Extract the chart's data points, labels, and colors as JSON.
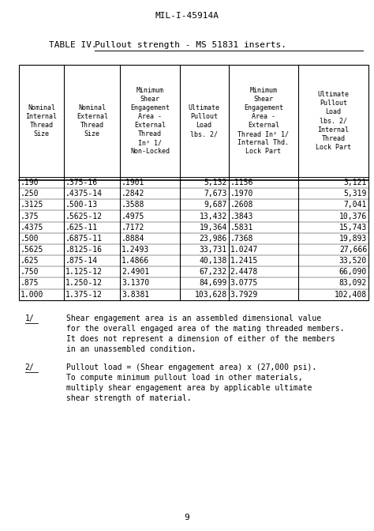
{
  "page_header": "MIL-I-45914A",
  "table_title_prefix": "TABLE IV.",
  "table_title_underlined": "Pullout strength - MS 51831 inserts.",
  "col_headers": [
    "Nominal\nInternal\nThread\nSize",
    "Nominal\nExternal\nThread\nSize",
    "Minimum\nShear\nEngagement\nArea -\nExternal\nThread\nIn² 1/\nNon-Locked",
    "Ultimate\nPullout\nLoad\nlbs. 2/",
    "Minimum\nShear\nEngagement\nArea -\nExternal\nThread In² 1/\nInternal Thd.\nLock Part",
    "Ultimate\nPullout\nLoad\nlbs. 2/\nInternal\nThread\nLock Part"
  ],
  "rows": [
    [
      ".190",
      ".375-16",
      ".1901",
      "5,132",
      ".1156",
      "3,121"
    ],
    [
      ".250",
      ".4375-14",
      ".2842",
      "7,673",
      ".1970",
      "5,319"
    ],
    [
      ".3125",
      ".500-13",
      ".3588",
      "9,687",
      ".2608",
      "7,041"
    ],
    [
      ".375",
      ".5625-12",
      ".4975",
      "13,432",
      ".3843",
      "10,376"
    ],
    [
      ".4375",
      ".625-11",
      ".7172",
      "19,364",
      ".5831",
      "15,743"
    ],
    [
      ".500",
      ".6875-11",
      ".8884",
      "23,986",
      ".7368",
      "19,893"
    ],
    [
      ".5625",
      ".8125-16",
      "1.2493",
      "33,731",
      "1.0247",
      "27,666"
    ],
    [
      ".625",
      ".875-14",
      "1.4866",
      "40,138",
      "1.2415",
      "33,520"
    ],
    [
      ".750",
      "1.125-12",
      "2.4901",
      "67,232",
      "2.4478",
      "66,090"
    ],
    [
      ".875",
      "1.250-12",
      "3.1370",
      "84,699",
      "3.0775",
      "83,092"
    ],
    [
      "1.000",
      "1.375-12",
      "3.8381",
      "103,628",
      "3.7929",
      "102,408"
    ]
  ],
  "footnote1_label": "1/",
  "footnote1_text": "Shear engagement area is an assembled dimensional value\nfor the overall engaged area of the mating threaded members.\nIt does not represent a dimension of either of the members\nin an unassembled condition.",
  "footnote2_label": "2/",
  "footnote2_text": "Pullout load = (Shear engagement area) x (27,000 psi).\nTo compute minimum pullout load in other materials,\nmultiply shear engagement area by applicable ultimate\nshear strength of material.",
  "page_number": "9",
  "bg_color": "#ffffff",
  "text_color": "#000000"
}
